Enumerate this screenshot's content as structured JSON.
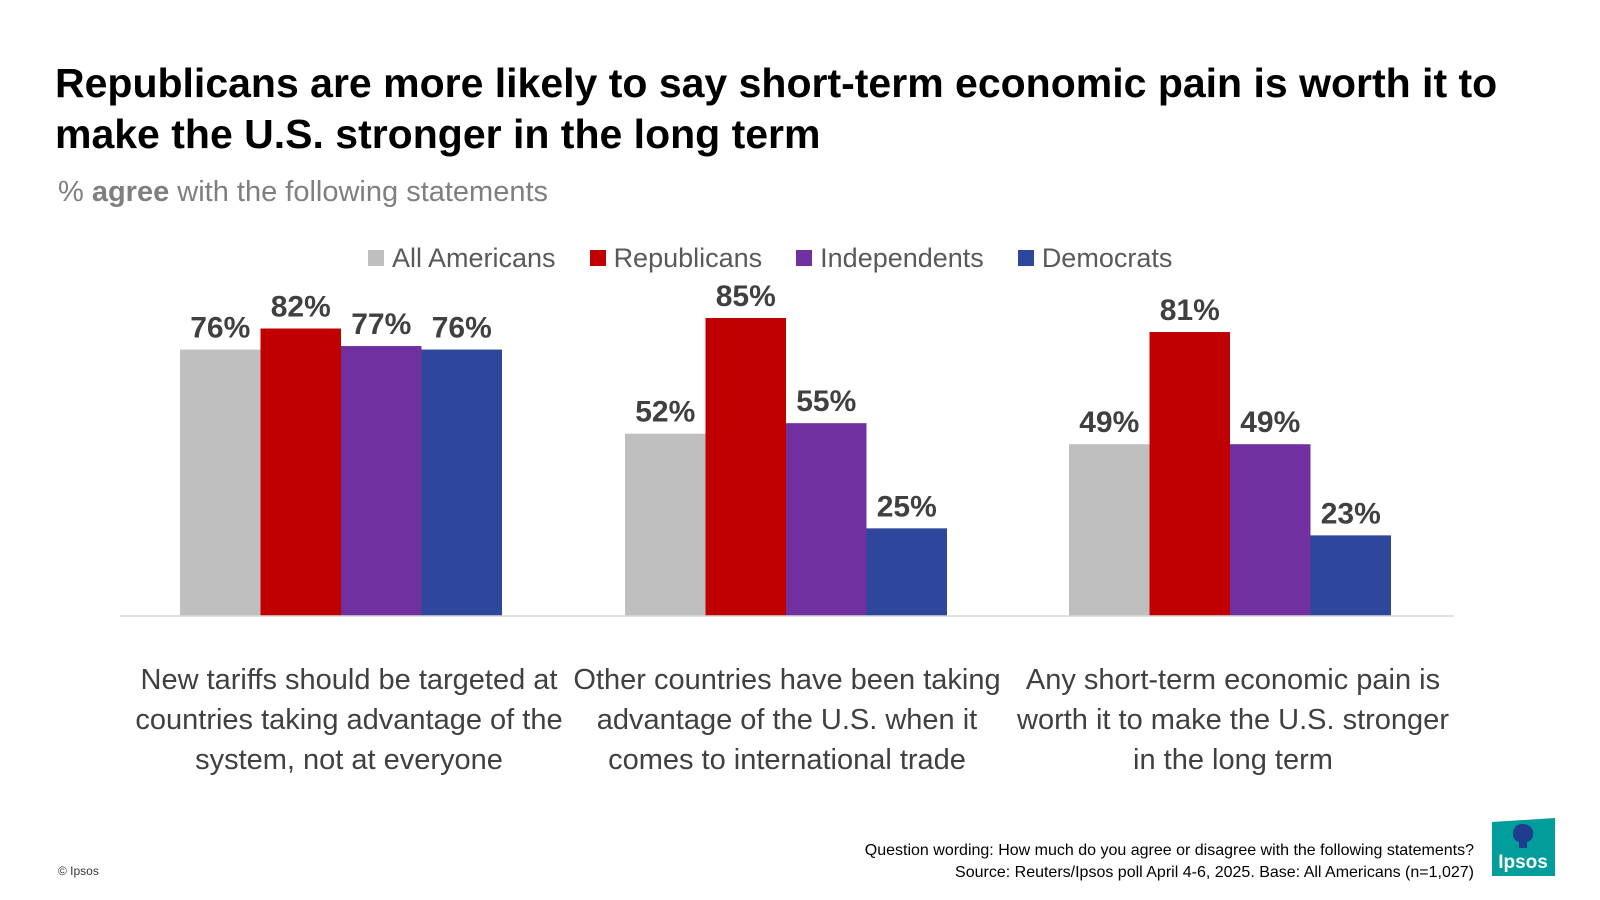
{
  "title": "Republicans are more likely to say short-term economic pain is worth it to make the U.S. stronger in the long term",
  "subtitle": {
    "prefix": "% ",
    "bold": "agree",
    "suffix": " with the following statements"
  },
  "legend": [
    {
      "name": "All Americans",
      "color": "#bfbfbf"
    },
    {
      "name": "Republicans",
      "color": "#c00000"
    },
    {
      "name": "Independents",
      "color": "#7030a0"
    },
    {
      "name": "Democrats",
      "color": "#2e479c"
    }
  ],
  "chart_data": {
    "type": "bar",
    "categories": [
      "New tariffs should be targeted at countries taking advantage of the system, not at everyone",
      "Other countries have been taking advantage of the U.S. when it comes to international trade",
      "Any short-term economic pain is worth it to make the U.S. stronger in the long term"
    ],
    "series": [
      {
        "name": "All Americans",
        "values": [
          76,
          52,
          49
        ]
      },
      {
        "name": "Republicans",
        "values": [
          82,
          85,
          81
        ]
      },
      {
        "name": "Independents",
        "values": [
          77,
          55,
          49
        ]
      },
      {
        "name": "Democrats",
        "values": [
          76,
          25,
          23
        ]
      }
    ],
    "value_suffix": "%",
    "ylim": [
      0,
      100
    ],
    "grid": false,
    "legend_position": "top"
  },
  "footer": {
    "copyright": "© Ipsos",
    "question": "Question wording: How much do you agree or disagree with the following statements?",
    "source": "Source: Reuters/Ipsos poll April 4-6, 2025. Base: All Americans (n=1,027)",
    "logo_text": "Ipsos",
    "logo_color": "#009d9a",
    "logo_dark": "#1f3c8f"
  }
}
